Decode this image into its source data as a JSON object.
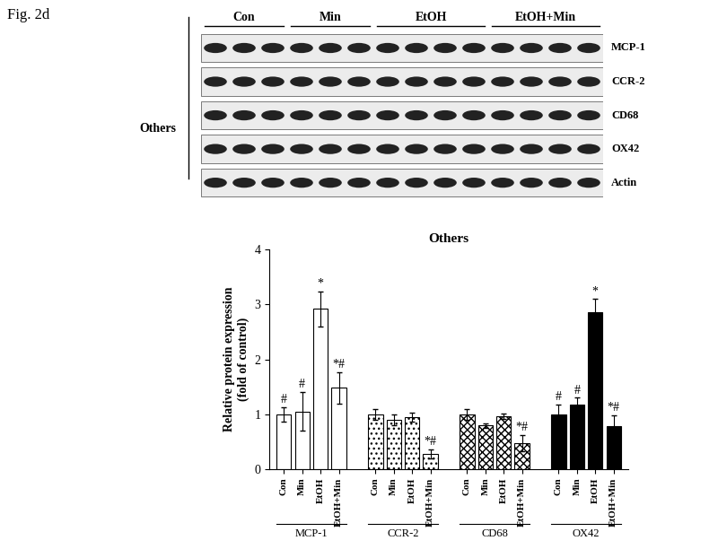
{
  "figure_label": "Fig. 2d",
  "blot": {
    "panel_label": "Others",
    "groups": [
      "Con",
      "Min",
      "EtOH",
      "EtOH+Min"
    ],
    "rows": [
      "MCP-1",
      "CCR-2",
      "CD68",
      "OX42",
      "Actin"
    ]
  },
  "chart_data": {
    "type": "bar",
    "title": "Others",
    "y_label": "Relative protein expression\n(fold of control)",
    "categories": [
      "Con",
      "Min",
      "EtOH",
      "EtOH+Min"
    ],
    "series": [
      {
        "name": "MCP-1",
        "color": "#ffffff",
        "values": [
          1.0,
          1.05,
          2.92,
          1.48
        ],
        "errors": [
          0.13,
          0.35,
          0.32,
          0.28
        ],
        "marks": [
          "#",
          "#",
          "*",
          "*#"
        ]
      },
      {
        "name": "CCR-2",
        "color": "#ffffff",
        "values": [
          1.0,
          0.9,
          0.95,
          0.28
        ],
        "errors": [
          0.1,
          0.1,
          0.08,
          0.08
        ],
        "marks": [
          null,
          null,
          null,
          "*#"
        ]
      },
      {
        "name": "CD68",
        "color": "#ffffff",
        "values": [
          1.0,
          0.8,
          0.97,
          0.48
        ],
        "errors": [
          0.1,
          0.04,
          0.05,
          0.15
        ],
        "marks": [
          null,
          null,
          null,
          "*#"
        ]
      },
      {
        "name": "OX42",
        "color": "#000000",
        "values": [
          1.0,
          1.18,
          2.85,
          0.78
        ],
        "errors": [
          0.18,
          0.12,
          0.25,
          0.2
        ],
        "marks": [
          "#",
          "#",
          "*",
          "*#"
        ]
      }
    ],
    "ylim": [
      0,
      4
    ],
    "yticks": [
      0,
      1,
      2,
      3,
      4
    ]
  }
}
